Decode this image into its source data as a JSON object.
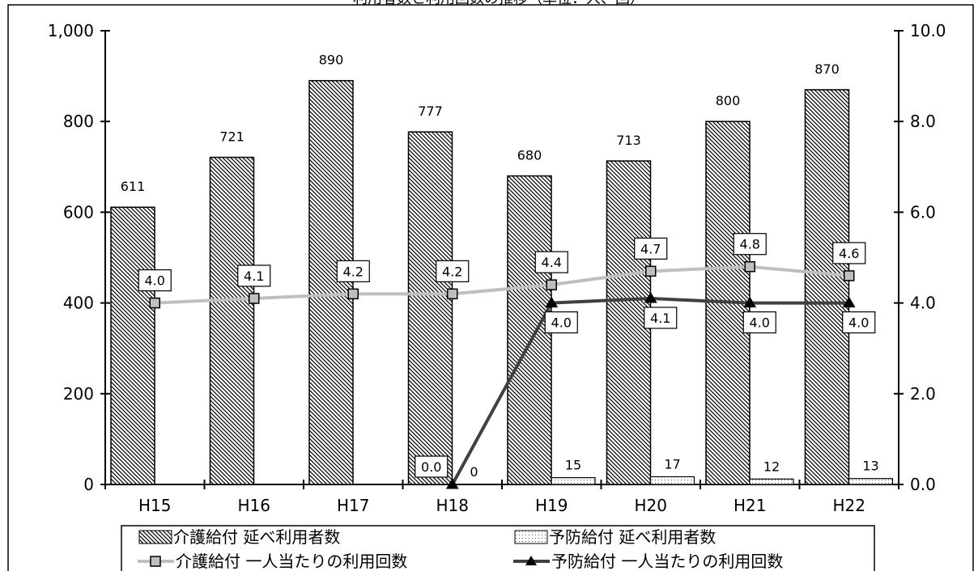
{
  "chart_data": {
    "type": "bar",
    "title": "利用者数と利用回数の推移（単位：人、回）",
    "categories": [
      "H15",
      "H16",
      "H17",
      "H18",
      "H19",
      "H20",
      "H21",
      "H22"
    ],
    "ylim": [
      0,
      1000
    ],
    "y_ticks": [
      "0",
      "200",
      "400",
      "600",
      "800",
      "1,000"
    ],
    "y2lim": [
      0,
      10
    ],
    "y2_ticks": [
      "0.0",
      "2.0",
      "4.0",
      "6.0",
      "8.0",
      "10.0"
    ],
    "legend_position": "bottom",
    "series": [
      {
        "name": "介護給付 延べ利用者数",
        "kind": "bar",
        "axis": "left",
        "values": [
          611,
          721,
          890,
          777,
          680,
          713,
          800,
          870
        ]
      },
      {
        "name": "予防給付 延べ利用者数",
        "kind": "bar",
        "axis": "left",
        "values": [
          null,
          null,
          null,
          0,
          15,
          17,
          12,
          13
        ]
      },
      {
        "name": "介護給付 一人当たりの利用回数",
        "kind": "line",
        "axis": "right",
        "color": "#bfbfbf",
        "values": [
          4.0,
          4.1,
          4.2,
          4.2,
          4.4,
          4.7,
          4.8,
          4.6
        ]
      },
      {
        "name": "予防給付 一人当たりの利用回数",
        "kind": "line",
        "axis": "right",
        "color": "#404040",
        "values": [
          null,
          null,
          null,
          0.0,
          4.0,
          4.1,
          4.0,
          4.0
        ]
      }
    ]
  }
}
